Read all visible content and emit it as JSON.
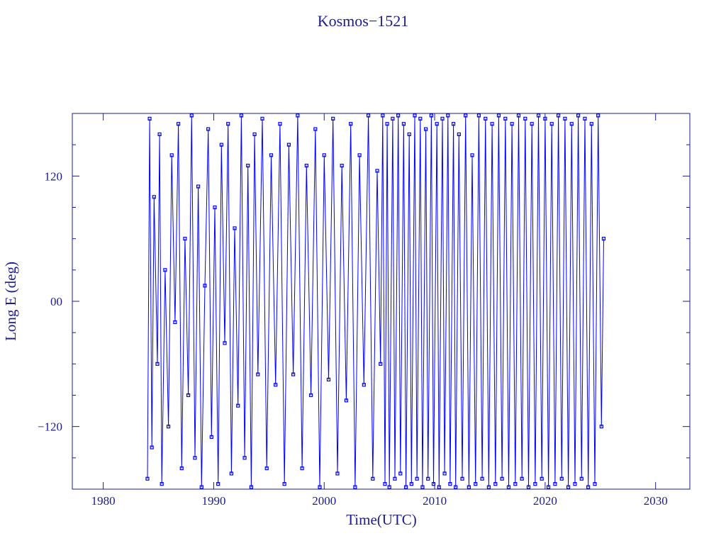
{
  "chart_data": {
    "type": "line",
    "title": "Kosmos−1521",
    "x_label": "Time(UTC)",
    "y_label": "Long E (deg)",
    "color": "#0000ff",
    "axis_color": "#1c1c8f",
    "markers": true,
    "xlim": [
      1977.2,
      2033.1
    ],
    "xticks": [
      1980,
      1990,
      2000,
      2010,
      2020,
      2030
    ],
    "ylim": [
      -180,
      180
    ],
    "yticks": [
      {
        "value": -120,
        "label": "−120"
      },
      {
        "value": 0,
        "label": "00"
      },
      120
    ],
    "y_minor_ticks": [
      -150,
      -90,
      -60,
      -30,
      30,
      60,
      90,
      150
    ],
    "x": [
      1984.0,
      1984.2,
      1984.4,
      1984.6,
      1984.9,
      1985.1,
      1985.3,
      1985.6,
      1985.9,
      1986.2,
      1986.5,
      1986.8,
      1987.1,
      1987.4,
      1987.7,
      1988.0,
      1988.3,
      1988.6,
      1988.9,
      1989.2,
      1989.5,
      1989.8,
      1990.1,
      1990.4,
      1990.7,
      1991.0,
      1991.3,
      1991.6,
      1991.9,
      1992.2,
      1992.5,
      1992.8,
      1993.1,
      1993.4,
      1993.7,
      1994.0,
      1994.4,
      1994.8,
      1995.2,
      1995.6,
      1996.0,
      1996.4,
      1996.8,
      1997.2,
      1997.6,
      1998.0,
      1998.4,
      1998.8,
      1999.2,
      1999.6,
      2000.0,
      2000.4,
      2000.8,
      2001.2,
      2001.6,
      2002.0,
      2002.4,
      2002.8,
      2003.2,
      2003.6,
      2004.0,
      2004.4,
      2004.8,
      2005.1,
      2005.3,
      2005.5,
      2005.7,
      2005.9,
      2006.2,
      2006.4,
      2006.7,
      2006.9,
      2007.2,
      2007.4,
      2007.7,
      2007.9,
      2008.2,
      2008.4,
      2008.7,
      2008.9,
      2009.2,
      2009.4,
      2009.7,
      2009.9,
      2010.2,
      2010.4,
      2010.7,
      2010.9,
      2011.2,
      2011.4,
      2011.7,
      2011.9,
      2012.2,
      2012.5,
      2012.8,
      2013.1,
      2013.4,
      2013.7,
      2014.0,
      2014.3,
      2014.6,
      2014.9,
      2015.2,
      2015.5,
      2015.8,
      2016.1,
      2016.4,
      2016.7,
      2017.0,
      2017.3,
      2017.6,
      2017.9,
      2018.2,
      2018.5,
      2018.8,
      2019.1,
      2019.4,
      2019.7,
      2020.0,
      2020.3,
      2020.6,
      2020.9,
      2021.2,
      2021.5,
      2021.8,
      2022.1,
      2022.4,
      2022.7,
      2023.0,
      2023.3,
      2023.6,
      2023.9,
      2024.2,
      2024.5,
      2024.8,
      2025.1,
      2025.3
    ],
    "values": [
      -170,
      175,
      -140,
      100,
      -60,
      160,
      -175,
      30,
      -120,
      140,
      -20,
      170,
      -160,
      60,
      -90,
      178,
      -150,
      110,
      -178,
      15,
      165,
      -130,
      90,
      -175,
      150,
      -40,
      170,
      -165,
      70,
      -100,
      178,
      -150,
      130,
      -178,
      160,
      -70,
      175,
      -160,
      140,
      -80,
      170,
      -175,
      150,
      -70,
      178,
      -160,
      130,
      -90,
      165,
      -178,
      140,
      -75,
      175,
      -165,
      130,
      -95,
      170,
      -178,
      140,
      -80,
      178,
      -170,
      125,
      -60,
      178,
      -175,
      170,
      -178,
      175,
      -170,
      178,
      -165,
      170,
      -178,
      160,
      -175,
      178,
      -170,
      175,
      -178,
      165,
      -170,
      178,
      -175,
      170,
      -178,
      175,
      -165,
      178,
      -175,
      170,
      -178,
      160,
      -170,
      178,
      -178,
      140,
      -175,
      178,
      -170,
      175,
      -178,
      170,
      -175,
      178,
      -170,
      175,
      -178,
      170,
      -175,
      178,
      -170,
      175,
      -178,
      170,
      -175,
      178,
      -170,
      175,
      -178,
      170,
      -175,
      178,
      -170,
      175,
      -178,
      170,
      -175,
      178,
      -170,
      175,
      -178,
      170,
      -175,
      178,
      -120,
      60
    ]
  }
}
